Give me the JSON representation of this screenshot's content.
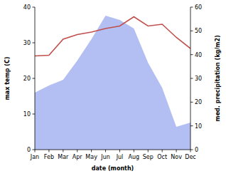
{
  "chart_data": {
    "type": "line",
    "categories": [
      "Jan",
      "Feb",
      "Mar",
      "Apr",
      "May",
      "Jun",
      "Jul",
      "Aug",
      "Sep",
      "Oct",
      "Nov",
      "Dec"
    ],
    "x_label": "date (month)",
    "y_label": "max temp (C)",
    "y2_label": "med. precipitation (kg/m2)",
    "ylim": [
      0,
      40
    ],
    "yticks": [
      0,
      10,
      20,
      30,
      40
    ],
    "y2lim": [
      0,
      60
    ],
    "y2ticks": [
      0,
      10,
      20,
      30,
      40,
      50,
      60
    ],
    "series": [
      {
        "name": "med. precipitation",
        "type": "area",
        "axis": "y2",
        "color": "#b3bef2",
        "values": [
          24,
          27,
          29.4,
          37.5,
          46.5,
          56.4,
          54.6,
          51,
          36.6,
          26,
          9.6,
          11.4
        ]
      },
      {
        "name": "max temp",
        "type": "line",
        "color": "#c0504d",
        "values": [
          26.3,
          26.5,
          31,
          32.3,
          33,
          34,
          34.7,
          37.3,
          34.7,
          35.2,
          31.5,
          28.4
        ]
      }
    ]
  }
}
